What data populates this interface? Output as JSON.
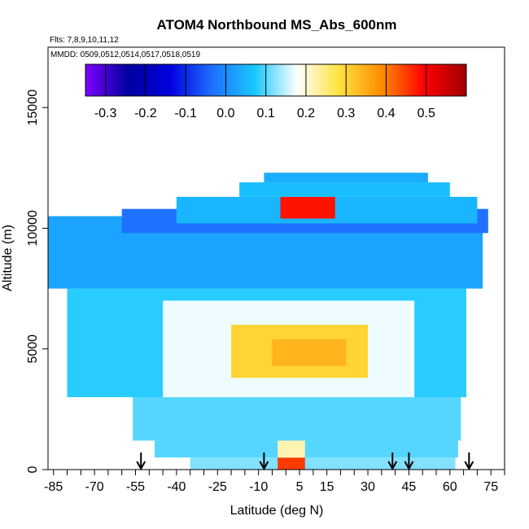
{
  "chart_data": {
    "type": "heatmap",
    "title": "ATOM4 Northbound MS_Abs_600nm",
    "flights_note": "Flts: 7,8,9,10,11,12",
    "dates_note": "MMDD: 0509,0512,0514,0517,0518,0519",
    "xlabel": "Latitude (deg N)",
    "ylabel": "Altitude (m)",
    "xlim": [
      -87,
      80
    ],
    "ylim": [
      0,
      17500
    ],
    "x_ticks": [
      -85,
      -70,
      -55,
      -40,
      -25,
      -10,
      5,
      15,
      30,
      45,
      60,
      75
    ],
    "x_tick_labels": [
      "-85",
      "-70",
      "-55",
      "-40",
      "-25",
      "-10",
      "5",
      "15",
      "30",
      "45",
      "60",
      "75"
    ],
    "y_ticks": [
      0,
      5000,
      10000,
      15000
    ],
    "y_tick_labels": [
      "0",
      "5000",
      "10000",
      "15000"
    ],
    "colorbar": {
      "min": -0.35,
      "max": 0.6,
      "ticks": [
        -0.3,
        -0.2,
        -0.1,
        0.0,
        0.1,
        0.2,
        0.3,
        0.4,
        0.5
      ],
      "tick_labels": [
        "-0.3",
        "-0.2",
        "-0.1",
        "0.0",
        "0.1",
        "0.2",
        "0.3",
        "0.4",
        "0.5"
      ],
      "colors": [
        "#7f00ff",
        "#0000a0",
        "#0000dd",
        "#1e6fff",
        "#18c8ff",
        "#ffffff",
        "#ffe23c",
        "#ff8c00",
        "#ff0000",
        "#a00000"
      ]
    },
    "arrows_latitude": [
      -53,
      -8,
      39,
      45,
      67
    ],
    "regions": [
      {
        "band": [
          0,
          500
        ],
        "lat": [
          -35,
          62
        ],
        "value": 0.12
      },
      {
        "band": [
          0,
          500
        ],
        "lat": [
          -3,
          7
        ],
        "value": 0.45
      },
      {
        "band": [
          500,
          1200
        ],
        "lat": [
          -48,
          63
        ],
        "value": 0.1
      },
      {
        "band": [
          500,
          1200
        ],
        "lat": [
          -3,
          7
        ],
        "value": 0.22
      },
      {
        "band": [
          1200,
          3000
        ],
        "lat": [
          -56,
          64
        ],
        "value": 0.1
      },
      {
        "band": [
          3000,
          7500
        ],
        "lat": [
          -80,
          66
        ],
        "value": 0.08
      },
      {
        "band": [
          3000,
          7000
        ],
        "lat": [
          -45,
          47
        ],
        "value": 0.17
      },
      {
        "band": [
          3800,
          6000
        ],
        "lat": [
          -20,
          30
        ],
        "value": 0.3
      },
      {
        "band": [
          4300,
          5400
        ],
        "lat": [
          -5,
          22
        ],
        "value": 0.34
      },
      {
        "band": [
          7500,
          10500
        ],
        "lat": [
          -87,
          72
        ],
        "value": 0.03
      },
      {
        "band": [
          9800,
          10800
        ],
        "lat": [
          -60,
          74
        ],
        "value": -0.03
      },
      {
        "band": [
          10200,
          11300
        ],
        "lat": [
          -40,
          70
        ],
        "value": 0.05
      },
      {
        "band": [
          10400,
          11300
        ],
        "lat": [
          -2,
          18
        ],
        "value": 0.48
      },
      {
        "band": [
          11300,
          11900
        ],
        "lat": [
          -17,
          60
        ],
        "value": 0.06
      },
      {
        "band": [
          11900,
          12300
        ],
        "lat": [
          -8,
          52
        ],
        "value": 0.04
      }
    ]
  }
}
